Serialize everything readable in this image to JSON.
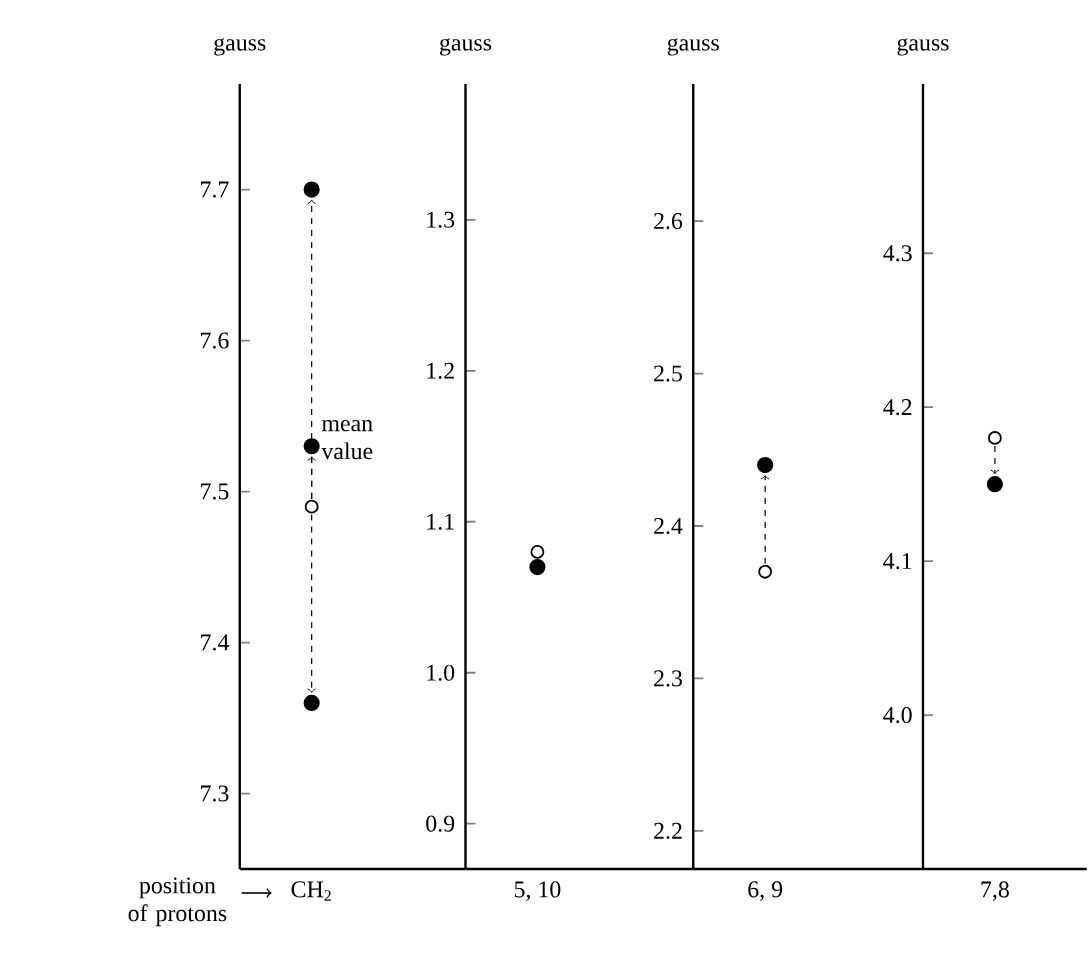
{
  "chart_data": [
    {
      "type": "scatter",
      "ylabel": "gauss",
      "xlabel": "position of protons",
      "categories": [
        "CH$_{2}$"
      ],
      "ylim": [
        7.25,
        7.77
      ],
      "yticks": [
        7.3,
        7.4,
        7.5,
        7.6,
        7.7
      ],
      "annotations": [
        "mean value"
      ],
      "series": [
        {
          "color": "#000000",
          "x": [
            "CH$_{2}$",
            "CH$_{2}$",
            "CH$_{2}$"
          ],
          "values": [
            7.7,
            7.53,
            7.36
          ]
        },
        {
          "color": "#ffffff",
          "x": [
            "CH$_{2}$"
          ],
          "values": [
            7.49
          ]
        }
      ]
    },
    {
      "type": "scatter",
      "ylabel": "gauss",
      "categories": [
        "5, 10"
      ],
      "ylim": [
        0.87,
        1.39
      ],
      "yticks": [
        0.9,
        {
          "value": 1.0,
          "label": "1.0"
        },
        1.1,
        1.2,
        1.3
      ],
      "series": [
        {
          "color": "#000000",
          "x": [
            "5, 10"
          ],
          "values": [
            1.07
          ]
        },
        {
          "color": "#ffffff",
          "x": [
            "5, 10"
          ],
          "values": [
            1.08
          ]
        }
      ]
    },
    {
      "type": "scatter",
      "ylabel": "gauss",
      "categories": [
        "6, 9"
      ],
      "ylim": [
        2.175,
        2.69
      ],
      "yticks": [
        2.2,
        2.3,
        2.4,
        2.5,
        2.6
      ],
      "series": [
        {
          "color": "#000000",
          "x": [
            "6, 9"
          ],
          "values": [
            2.44
          ]
        },
        {
          "color": "#ffffff",
          "x": [
            "6, 9"
          ],
          "values": [
            2.37
          ]
        }
      ]
    },
    {
      "type": "scatter",
      "ylabel": "gauss",
      "categories": [
        "7,8"
      ],
      "ylim": [
        3.9,
        4.41
      ],
      "yticks": [
        {
          "value": 4.0,
          "label": "4.0"
        },
        4.1,
        4.2,
        4.3
      ],
      "series": [
        {
          "color": "#000000",
          "x": [
            "7,8"
          ],
          "values": [
            4.15
          ]
        },
        {
          "color": "#ffffff",
          "x": [
            "7,8"
          ],
          "values": [
            4.18
          ]
        }
      ]
    }
  ]
}
